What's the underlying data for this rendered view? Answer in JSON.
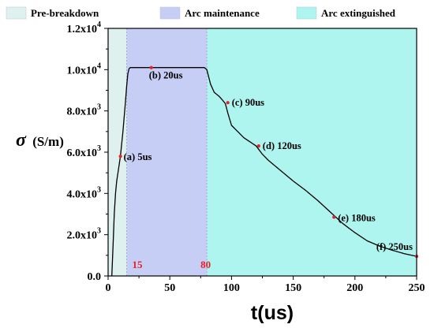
{
  "chart_data": {
    "type": "line",
    "xlabel": "t(us)",
    "ylabel": "σ (S/m)",
    "ylabel_symbol": "σ",
    "ylabel_unit": "(S/m)",
    "xlim": [
      0,
      250
    ],
    "ylim": [
      0,
      12000
    ],
    "x_ticks": [
      "0",
      "50",
      "100",
      "150",
      "200",
      "250"
    ],
    "x_tick_values": [
      0,
      50,
      100,
      150,
      200,
      250
    ],
    "y_ticks": [
      {
        "value": 0,
        "mantissa": "0.0",
        "exp": ""
      },
      {
        "value": 2000,
        "mantissa": "2.0x10",
        "exp": "3"
      },
      {
        "value": 4000,
        "mantissa": "4.0x10",
        "exp": "3"
      },
      {
        "value": 6000,
        "mantissa": "6.0x10",
        "exp": "3"
      },
      {
        "value": 8000,
        "mantissa": "8.0x10",
        "exp": "3"
      },
      {
        "value": 10000,
        "mantissa": "1.0x10",
        "exp": "4"
      },
      {
        "value": 12000,
        "mantissa": "1.2x10",
        "exp": "4"
      }
    ],
    "regions": [
      {
        "name": "Pre-breakdown",
        "x_start": 0,
        "x_end": 15,
        "color": "#dff1ee"
      },
      {
        "name": "Arc maintenance",
        "x_start": 15,
        "x_end": 80,
        "color": "#c6cef5"
      },
      {
        "name": "Arc extinguished",
        "x_start": 80,
        "x_end": 250,
        "color": "#aef4ef"
      }
    ],
    "boundary_labels": [
      {
        "text": "15",
        "x": 15
      },
      {
        "text": "80",
        "x": 80
      }
    ],
    "series": [
      {
        "color": "#000000",
        "x": [
          3,
          4,
          5,
          6,
          7,
          8,
          10,
          12,
          14,
          15,
          16,
          17,
          18,
          20,
          25,
          30,
          40,
          50,
          60,
          70,
          78,
          80,
          83,
          86,
          90,
          93,
          95,
          97,
          100,
          105,
          110,
          115,
          120,
          125,
          130,
          140,
          150,
          160,
          170,
          180,
          190,
          200,
          210,
          220,
          230,
          240,
          250
        ],
        "y": [
          0,
          1500,
          3000,
          4000,
          4600,
          5000,
          5800,
          7000,
          8400,
          9200,
          9800,
          10050,
          10100,
          10100,
          10100,
          10100,
          10100,
          10100,
          10100,
          10100,
          10100,
          10000,
          9300,
          8900,
          8700,
          8500,
          8350,
          7900,
          7300,
          7000,
          6700,
          6500,
          6300,
          5900,
          5600,
          5100,
          4600,
          4150,
          3650,
          3100,
          2550,
          2100,
          1700,
          1450,
          1250,
          1080,
          950
        ]
      }
    ],
    "annotations": [
      {
        "label": "(a) 5us",
        "x": 10,
        "y": 5800
      },
      {
        "label": "(b) 20us",
        "x": 35,
        "y": 10100
      },
      {
        "label": "(c) 90us",
        "x": 97,
        "y": 8400
      },
      {
        "label": "(d) 120us",
        "x": 122,
        "y": 6300
      },
      {
        "label": "(e) 180us",
        "x": 183,
        "y": 2850
      },
      {
        "label": "(f) 250us",
        "x": 250,
        "y": 950
      }
    ],
    "marker_color": "#e8202a",
    "grid": false,
    "legend_position": "top"
  }
}
